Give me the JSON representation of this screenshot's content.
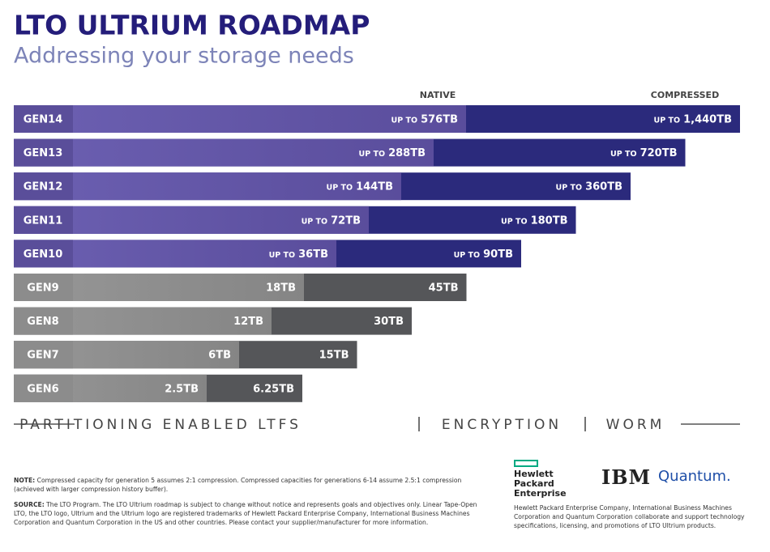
{
  "header": {
    "title": "LTO ULTRIUM ROADMAP",
    "subtitle": "Addressing your storage needs"
  },
  "columns": {
    "native": "NATIVE",
    "compressed": "COMPRESSED"
  },
  "rows": [
    {
      "gen": "GEN14",
      "prefix": "UP TO",
      "native": "576TB",
      "compressed_prefix": "UP TO",
      "compressed": "1,440TB"
    },
    {
      "gen": "GEN13",
      "prefix": "UP TO",
      "native": "288TB",
      "compressed_prefix": "UP TO",
      "compressed": "720TB"
    },
    {
      "gen": "GEN12",
      "prefix": "UP TO",
      "native": "144TB",
      "compressed_prefix": "UP TO",
      "compressed": "360TB"
    },
    {
      "gen": "GEN11",
      "prefix": "UP TO",
      "native": "72TB",
      "compressed_prefix": "UP TO",
      "compressed": "180TB"
    },
    {
      "gen": "GEN10",
      "prefix": "UP TO",
      "native": "36TB",
      "compressed_prefix": "UP TO",
      "compressed": "90TB"
    },
    {
      "gen": "GEN9",
      "native": "18TB",
      "compressed": "45TB"
    },
    {
      "gen": "GEN8",
      "native": "12TB",
      "compressed": "30TB"
    },
    {
      "gen": "GEN7",
      "native": "6TB",
      "compressed": "15TB"
    },
    {
      "gen": "GEN6",
      "native": "2.5TB",
      "compressed": "6.25TB"
    }
  ],
  "features": [
    "PARTITIONING ENABLED LTFS",
    "ENCRYPTION",
    "WORM"
  ],
  "notes": {
    "note_label": "NOTE:",
    "note_text": "Compressed capacity for generation 5 assumes 2:1 compression. Compressed capacities for generations 6-14 assume 2.5:1 compression (achieved with larger compression history buffer).",
    "source_label": "SOURCE:",
    "source_text": "The LTO Program. The LTO Ultrium roadmap is subject to change without notice and represents goals and objectives only. Linear Tape-Open LTO, the LTO logo, Ultrium and the Ultrium logo are registered trademarks of Hewlett Packard Enterprise Company, International Business Machines Corporation and Quantum Corporation in the US and other countries. Please contact your supplier/manufacturer for more information."
  },
  "logos": {
    "hpe": "Hewlett Packard Enterprise",
    "ibm": "IBM",
    "quantum": "Quantum."
  },
  "partners_text": "Hewlett Packard Enterprise Company, International Business Machines Corporation and Quantum Corporation collaborate and support technology specifications, licensing, and promotions of LTO Ultrium products."
}
